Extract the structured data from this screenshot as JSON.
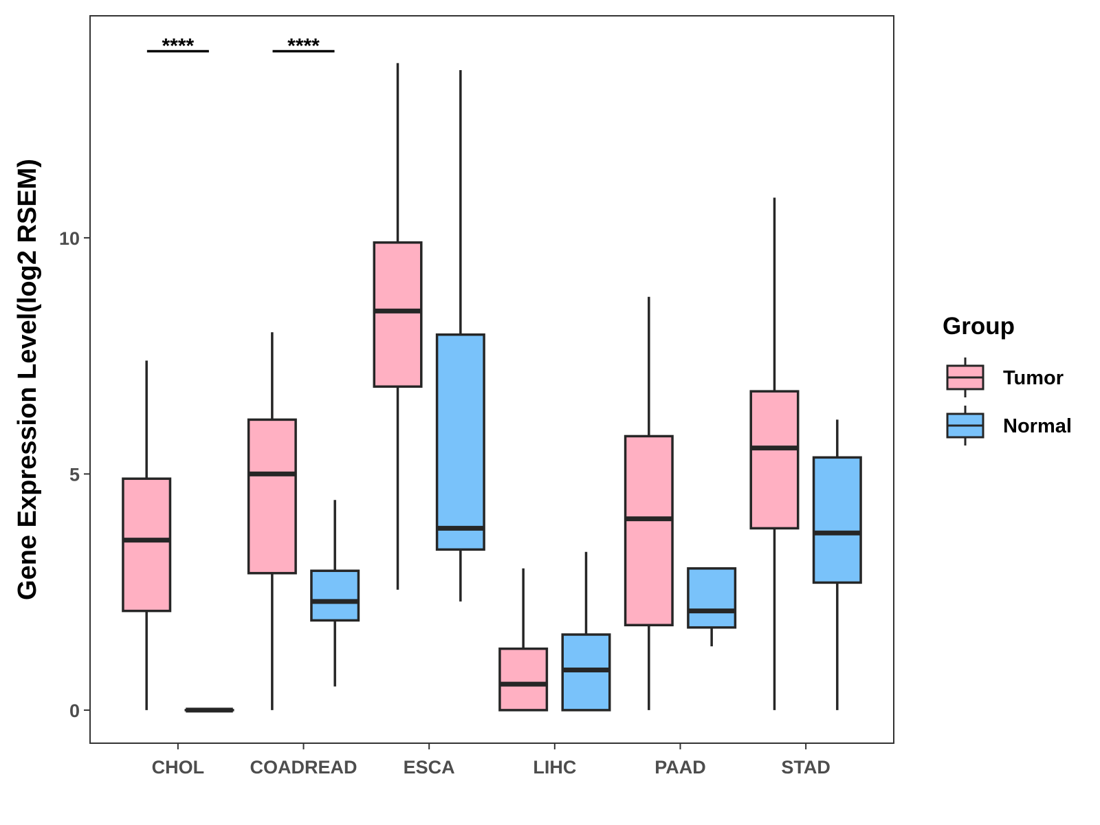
{
  "chart_data": {
    "type": "boxplot",
    "title": "",
    "xlabel": "",
    "ylabel": "Gene Expression Level(log2 RSEM)",
    "ylim": [
      -0.7,
      14.7
    ],
    "yticks": [
      0,
      5,
      10
    ],
    "grid": false,
    "legend": {
      "title": "Group",
      "placement": "right",
      "entries": [
        "Tumor",
        "Normal"
      ]
    },
    "colors": {
      "Tumor": "#FFB0C2",
      "Normal": "#79C2FA",
      "outline": "#262626"
    },
    "categories": [
      "CHOL",
      "COADREAD",
      "ESCA",
      "LIHC",
      "PAAD",
      "STAD"
    ],
    "series": [
      {
        "name": "Tumor",
        "boxes": [
          {
            "min": 0.0,
            "q1": 2.1,
            "median": 3.6,
            "q3": 4.9,
            "max": 7.4
          },
          {
            "min": 0.0,
            "q1": 2.9,
            "median": 5.0,
            "q3": 6.15,
            "max": 8.0
          },
          {
            "min": 2.55,
            "q1": 6.85,
            "median": 8.45,
            "q3": 9.9,
            "max": 13.7
          },
          {
            "min": 0.0,
            "q1": 0.0,
            "median": 0.55,
            "q3": 1.3,
            "max": 3.0
          },
          {
            "min": 0.0,
            "q1": 1.8,
            "median": 4.05,
            "q3": 5.8,
            "max": 8.75
          },
          {
            "min": 0.0,
            "q1": 3.85,
            "median": 5.55,
            "q3": 6.75,
            "max": 10.85
          }
        ]
      },
      {
        "name": "Normal",
        "boxes": [
          {
            "min": 0.0,
            "q1": 0.0,
            "median": 0.0,
            "q3": 0.0,
            "max": 0.0
          },
          {
            "min": 0.5,
            "q1": 1.9,
            "median": 2.3,
            "q3": 2.95,
            "max": 4.45
          },
          {
            "min": 2.3,
            "q1": 3.4,
            "median": 3.85,
            "q3": 7.95,
            "max": 13.55
          },
          {
            "min": 0.0,
            "q1": 0.0,
            "median": 0.85,
            "q3": 1.6,
            "max": 3.35
          },
          {
            "min": 1.35,
            "q1": 1.75,
            "median": 2.1,
            "q3": 3.0,
            "max": 3.0
          },
          {
            "min": 0.0,
            "q1": 2.7,
            "median": 3.75,
            "q3": 5.35,
            "max": 6.15
          }
        ]
      }
    ],
    "annotations": [
      {
        "category": "CHOL",
        "label": "****",
        "y": 13.95
      },
      {
        "category": "COADREAD",
        "label": "****",
        "y": 13.95
      }
    ]
  }
}
